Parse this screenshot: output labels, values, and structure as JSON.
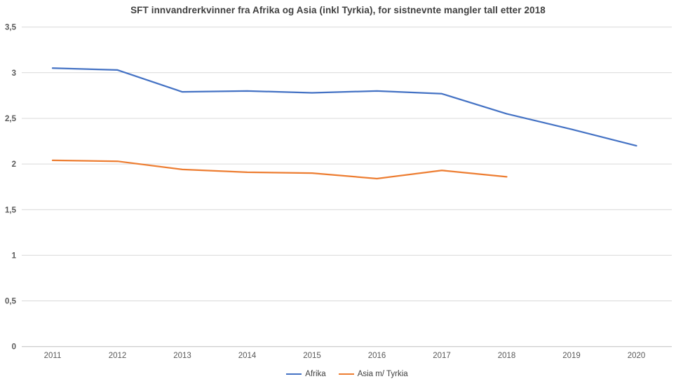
{
  "chart_data": {
    "type": "line",
    "title": "SFT innvandrerkvinner fra Afrika og Asia (inkl Tyrkia), for sistnevnte mangler tall etter 2018",
    "x": [
      "2011",
      "2012",
      "2013",
      "2014",
      "2015",
      "2016",
      "2017",
      "2018",
      "2019",
      "2020"
    ],
    "series": [
      {
        "id": "afrika",
        "name": "Afrika",
        "color": "#4472C4",
        "values": [
          3.05,
          3.03,
          2.79,
          2.8,
          2.78,
          2.8,
          2.77,
          2.55,
          2.38,
          2.2
        ]
      },
      {
        "id": "asia-m-tyrkia",
        "name": "Asia m/ Tyrkia",
        "color": "#ED7D31",
        "values": [
          2.04,
          2.03,
          1.94,
          1.91,
          1.9,
          1.84,
          1.93,
          1.86,
          null,
          null
        ]
      }
    ],
    "yticks": [
      {
        "label": "0",
        "value": 0
      },
      {
        "label": "0,5",
        "value": 0.5
      },
      {
        "label": "1",
        "value": 1
      },
      {
        "label": "1,5",
        "value": 1.5
      },
      {
        "label": "2",
        "value": 2
      },
      {
        "label": "2,5",
        "value": 2.5
      },
      {
        "label": "3",
        "value": 3
      },
      {
        "label": "3,5",
        "value": 3.5
      }
    ],
    "ylim": [
      0,
      3.5
    ],
    "xlabel": "",
    "ylabel": "",
    "grid": true,
    "legend_position": "bottom",
    "colors": {
      "gridline": "#D9D9D9",
      "axis_line": "#BFBFBF",
      "tick_label": "#595959",
      "title": "#3F3F3F",
      "legend_label": "#404040"
    }
  }
}
